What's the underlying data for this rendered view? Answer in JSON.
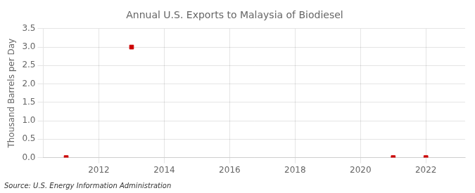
{
  "chart_data": {
    "type": "scatter",
    "title": "Annual U.S. Exports to Malaysia of Biodiesel",
    "ylabel": "Thousand Barrels per Day",
    "annotations": [
      "Source: U.S. Energy Information Administration"
    ],
    "x": [
      2011,
      2013,
      2021,
      2022
    ],
    "values": [
      0.0,
      3.0,
      0.0,
      0.0
    ],
    "color": "#cc0000",
    "marker": "square",
    "xlim": [
      2010.3,
      2023.2
    ],
    "xticks": [
      2012,
      2014,
      2016,
      2018,
      2020,
      2022
    ],
    "ylim": [
      0,
      3.5
    ],
    "yticks": [
      {
        "value": 0,
        "label": "0.0"
      },
      0.5,
      {
        "value": 1,
        "label": "1.0"
      },
      1.5,
      {
        "value": 2,
        "label": "2.0"
      },
      2.5,
      {
        "value": 3,
        "label": "3.0"
      },
      3.5
    ],
    "grid": true
  }
}
